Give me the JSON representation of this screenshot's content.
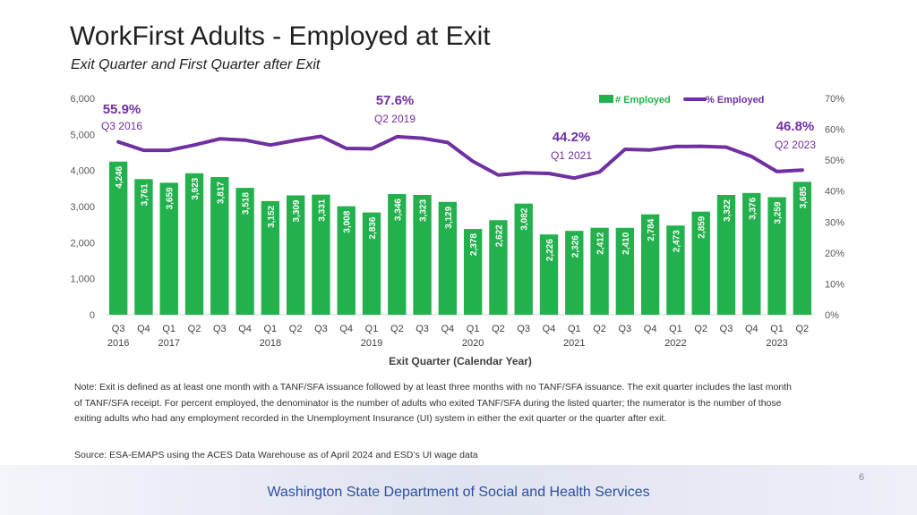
{
  "header": {
    "title": "WorkFirst Adults - Employed at Exit",
    "subtitle": "Exit Quarter and First Quarter after Exit"
  },
  "chart_data": {
    "type": "bar+line",
    "xlabel": "Exit Quarter (Calendar Year)",
    "categories": [
      "Q3",
      "Q4",
      "Q1",
      "Q2",
      "Q3",
      "Q4",
      "Q1",
      "Q2",
      "Q3",
      "Q4",
      "Q1",
      "Q2",
      "Q3",
      "Q4",
      "Q1",
      "Q2",
      "Q3",
      "Q4",
      "Q1",
      "Q2",
      "Q3",
      "Q4",
      "Q1",
      "Q2",
      "Q3",
      "Q4",
      "Q1",
      "Q2"
    ],
    "year_labels": [
      {
        "index": 0,
        "label": "2016"
      },
      {
        "index": 2,
        "label": "2017"
      },
      {
        "index": 6,
        "label": "2018"
      },
      {
        "index": 10,
        "label": "2019"
      },
      {
        "index": 14,
        "label": "2020"
      },
      {
        "index": 18,
        "label": "2021"
      },
      {
        "index": 22,
        "label": "2022"
      },
      {
        "index": 26,
        "label": "2023"
      }
    ],
    "left_axis": {
      "ylim": [
        0,
        6000
      ],
      "ticks": [
        "0",
        "1,000",
        "2,000",
        "3,000",
        "4,000",
        "5,000",
        "6,000"
      ],
      "tick_values": [
        0,
        1000,
        2000,
        3000,
        4000,
        5000,
        6000
      ]
    },
    "right_axis": {
      "ylim": [
        0,
        70
      ],
      "ticks": [
        "0%",
        "10%",
        "20%",
        "30%",
        "40%",
        "50%",
        "60%",
        "70%"
      ],
      "tick_values": [
        0,
        10,
        20,
        30,
        40,
        50,
        60,
        70
      ]
    },
    "series": [
      {
        "name": "# Employed",
        "type": "bar",
        "color": "#22b14c",
        "values": [
          4246,
          3761,
          3659,
          3923,
          3817,
          3518,
          3152,
          3309,
          3331,
          3008,
          2836,
          3346,
          3323,
          3129,
          2378,
          2622,
          3082,
          2226,
          2326,
          2412,
          2410,
          2784,
          2473,
          2859,
          3322,
          3376,
          3259,
          3685
        ],
        "labels": [
          "4,246",
          "3,761",
          "3,659",
          "3,923",
          "3,817",
          "3,518",
          "3,152",
          "3,309",
          "3,331",
          "3,008",
          "2,836",
          "3,346",
          "3,323",
          "3,129",
          "2,378",
          "2,622",
          "3,082",
          "2,226",
          "2,326",
          "2,412",
          "2,410",
          "2,784",
          "2,473",
          "2,859",
          "3,322",
          "3,376",
          "3,259",
          "3,685"
        ]
      },
      {
        "name": "% Employed",
        "type": "line",
        "color": "#7030a0",
        "values": [
          55.9,
          53.2,
          53.2,
          54.9,
          56.9,
          56.5,
          54.9,
          56.4,
          57.7,
          53.8,
          53.7,
          57.6,
          57.1,
          55.7,
          49.6,
          45.2,
          45.9,
          45.7,
          44.2,
          46.2,
          53.5,
          53.3,
          54.4,
          54.5,
          54.2,
          51.2,
          46.3,
          46.8
        ]
      }
    ],
    "annotations": [
      {
        "index": 0,
        "value": "55.9%",
        "period": "Q3 2016"
      },
      {
        "index": 11,
        "value": "57.6%",
        "period": "Q2 2019"
      },
      {
        "index": 18,
        "value": "44.2%",
        "period": "Q1 2021"
      },
      {
        "index": 27,
        "value": "46.8%",
        "period": "Q2 2023"
      }
    ]
  },
  "notes": {
    "note": "Note: Exit is defined as at least one month with a TANF/SFA issuance followed by at least three months with no TANF/SFA issuance. The exit quarter includes the last month of TANF/SFA receipt. For percent employed, the denominator is the number of adults who exited TANF/SFA during the listed quarter; the numerator is the number of those exiting adults who had any employment recorded in the Unemployment Insurance (UI) system in either the exit quarter or the quarter after exit.",
    "source": "Source: ESA-EMAPS using the ACES Data Warehouse as of April 2024 and ESD’s UI wage data"
  },
  "footer": {
    "page_number": "6",
    "organization": "Washington State Department of Social and Health Services"
  }
}
